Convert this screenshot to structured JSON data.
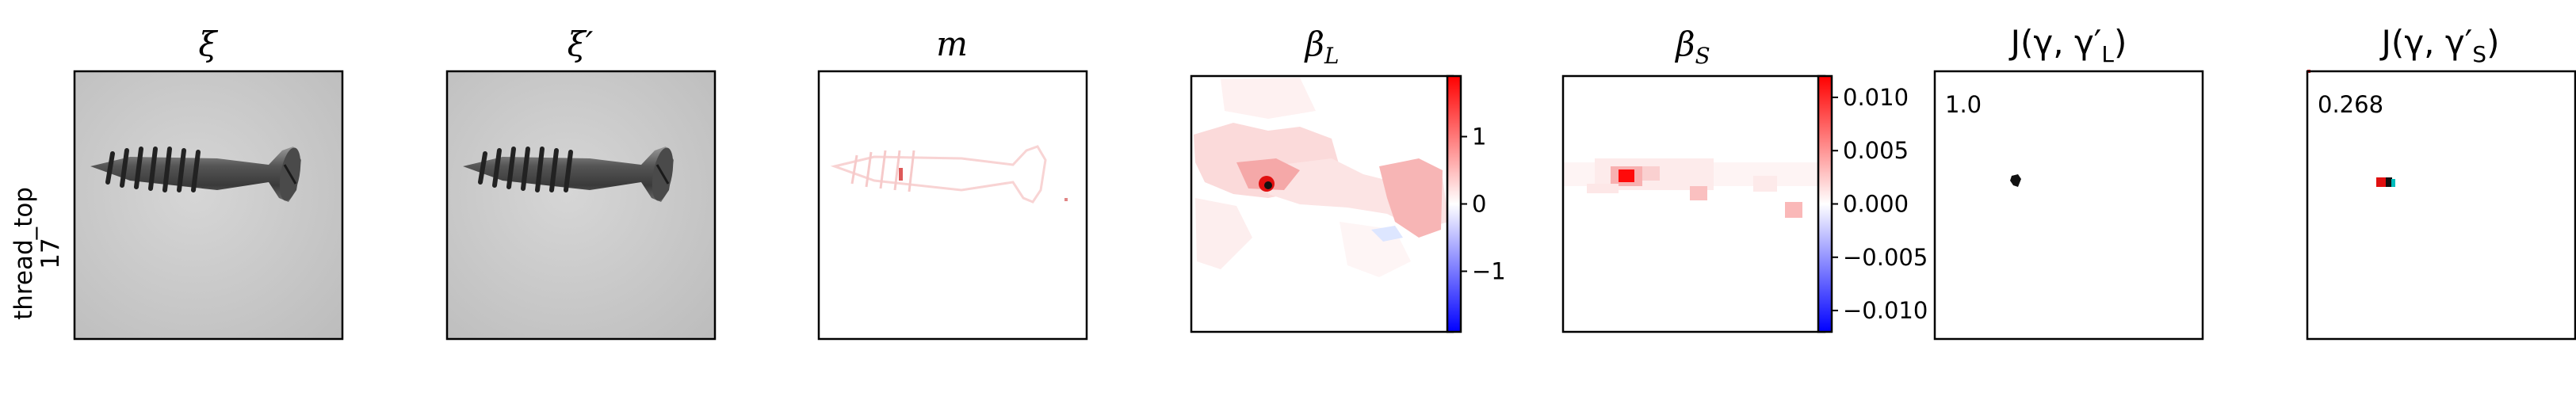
{
  "row_label": [
    "thread_top",
    "17"
  ],
  "panels": [
    {
      "title_base": "ξ",
      "title_sub": ""
    },
    {
      "title_base": "ξ′",
      "title_sub": ""
    },
    {
      "title_base": "m",
      "title_sub": ""
    },
    {
      "title_base": "β",
      "title_sub": "L"
    },
    {
      "title_base": "β",
      "title_sub": "S"
    },
    {
      "title_text": "J(γ, γ′",
      "title_sub": "L",
      "title_close": ")"
    },
    {
      "title_text": "J(γ, γ′",
      "title_sub": "S",
      "title_close": ")"
    }
  ],
  "colorbar_L": {
    "ticks": [
      "1",
      "0",
      "−1"
    ],
    "range": [
      -1.9,
      1.9
    ],
    "tick_values": [
      1,
      0,
      -1
    ],
    "colors": [
      "#0000ff",
      "#ffffff",
      "#ff0000"
    ]
  },
  "colorbar_S": {
    "ticks": [
      "0.010",
      "0.005",
      "0.000",
      "−0.005",
      "−0.010"
    ],
    "range": [
      -0.012,
      0.012
    ],
    "tick_values": [
      0.01,
      0.005,
      0,
      -0.005,
      -0.01
    ],
    "colors": [
      "#0000ff",
      "#ffffff",
      "#ff0000"
    ]
  },
  "annotations": {
    "jaccard_L": "1.0",
    "jaccard_S": "0.268"
  }
}
